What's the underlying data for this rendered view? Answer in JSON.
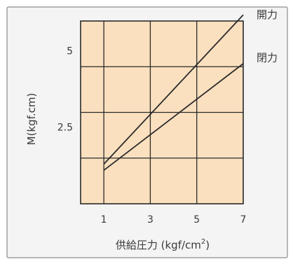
{
  "chart_data": {
    "type": "line",
    "xlabel": "供給圧力 (kgf/cm",
    "xlabel_superscript": "2",
    "xlabel_close": ")",
    "ylabel": "M(kgf.cm)",
    "xlim": [
      0,
      7
    ],
    "ylim": [
      0,
      6
    ],
    "x_ticks": [
      {
        "value": 1,
        "label": "1"
      },
      {
        "value": 3,
        "label": "3"
      },
      {
        "value": 5,
        "label": "5"
      },
      {
        "value": 7,
        "label": "7"
      }
    ],
    "y_ticks": [
      {
        "value": 2.5,
        "label": "2.5"
      },
      {
        "value": 5,
        "label": "5"
      }
    ],
    "grid": true,
    "grid_x": [
      1,
      3,
      5
    ],
    "grid_y": [
      1.5,
      3,
      4.5
    ],
    "series": [
      {
        "name": "開力",
        "x": [
          1,
          7
        ],
        "y": [
          1.3,
          6.2
        ]
      },
      {
        "name": "閉力",
        "x": [
          1,
          7
        ],
        "y": [
          1.1,
          4.6
        ]
      }
    ]
  }
}
